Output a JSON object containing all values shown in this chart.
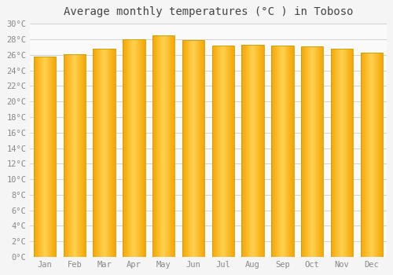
{
  "title": "Average monthly temperatures (°C ) in Toboso",
  "months": [
    "Jan",
    "Feb",
    "Mar",
    "Apr",
    "May",
    "Jun",
    "Jul",
    "Aug",
    "Sep",
    "Oct",
    "Nov",
    "Dec"
  ],
  "values": [
    25.8,
    26.1,
    26.8,
    28.0,
    28.5,
    27.9,
    27.2,
    27.3,
    27.2,
    27.1,
    26.8,
    26.3
  ],
  "bar_color_center": "#FFD050",
  "bar_color_edge": "#F5A800",
  "background_color": "#F5F5F5",
  "plot_bg_color": "#FAFAFA",
  "grid_color": "#CCCCCC",
  "ylim": [
    0,
    30
  ],
  "yticks": [
    0,
    2,
    4,
    6,
    8,
    10,
    12,
    14,
    16,
    18,
    20,
    22,
    24,
    26,
    28,
    30
  ],
  "title_fontsize": 10,
  "tick_fontsize": 7.5,
  "bar_edge_color": "#C8A000"
}
